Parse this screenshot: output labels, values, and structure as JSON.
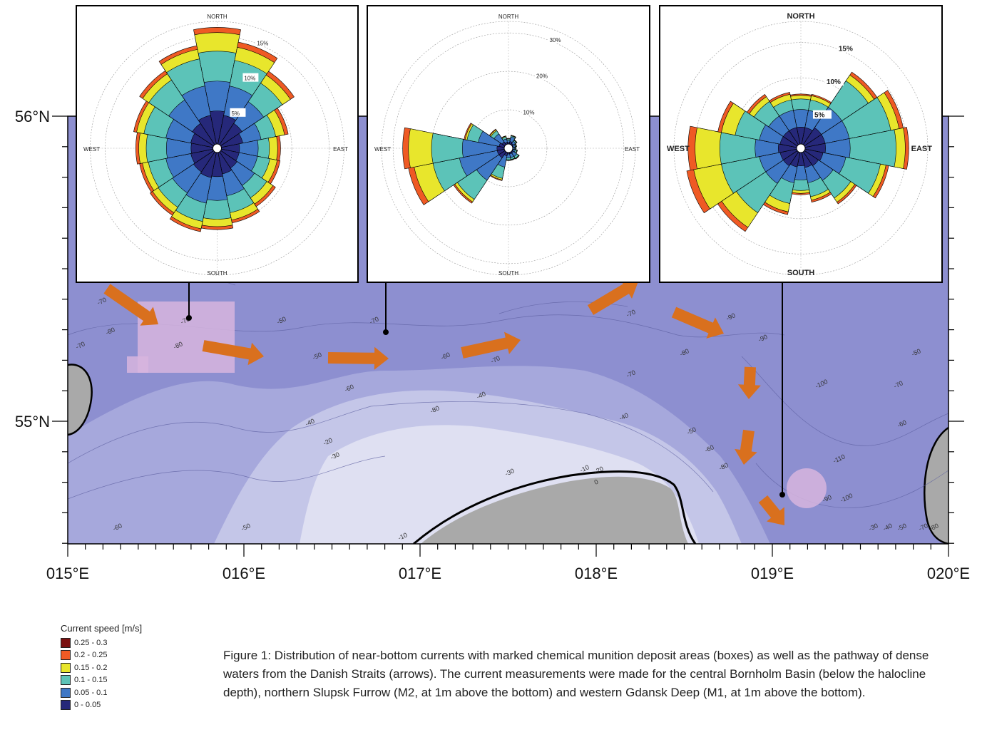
{
  "map": {
    "lat_labels": [
      "56°N",
      "55°N"
    ],
    "lon_labels": [
      "015°E",
      "016°E",
      "017°E",
      "018°E",
      "019°E",
      "020°E"
    ],
    "colors": {
      "deep": "#8d8fd0",
      "mid": "#a6a8dc",
      "shallow": "#c4c6e8",
      "shelf": "#dfe0f2",
      "land": "#a9a9a9",
      "arrow": "#d9701e",
      "deposit": "#d7b5de"
    },
    "contour_labels": [
      "-70",
      "-80",
      "-70",
      "-80",
      "-60",
      "-50",
      "-50",
      "-60",
      "-70",
      "-60",
      "-40",
      "-70",
      "-80",
      "-40",
      "-30",
      "-20",
      "-30",
      "-20",
      "-10",
      "0",
      "-10",
      "-70",
      "-60",
      "-40",
      "-50",
      "-60",
      "-70",
      "-80",
      "-90",
      "-100",
      "-110",
      "-80",
      "-90",
      "-100",
      "-70",
      "-60",
      "-50",
      "-30",
      "-40",
      "-50",
      "-70",
      "-80",
      "-90",
      "-90",
      "-70",
      "-60",
      "-50"
    ]
  },
  "roses": [
    {
      "name": "Bornholm Basin",
      "directions": {
        "north": "NORTH",
        "south": "SOUTH",
        "east": "EAST",
        "west": "WEST"
      },
      "rings": [
        "5%",
        "10%",
        "15%"
      ],
      "max_pct": 17,
      "sectors": [
        [
          [
            5,
            9,
            13,
            15.5,
            16.2
          ]
        ],
        [
          [
            4.5,
            8.5,
            12,
            13.8,
            14.5
          ]
        ],
        [
          [
            4,
            7.5,
            10.5,
            11.8,
            12.4
          ]
        ],
        [
          [
            3.5,
            6,
            8,
            9.2,
            9.7
          ]
        ],
        [
          [
            3,
            5.5,
            7,
            8.1,
            8.5
          ]
        ],
        [
          [
            3,
            5.5,
            7.2,
            8.2,
            8.6
          ]
        ],
        [
          [
            3.2,
            6,
            8,
            9,
            9.4
          ]
        ],
        [
          [
            3.5,
            6.5,
            8.8,
            9.8,
            10.2
          ]
        ],
        [
          [
            3.8,
            7,
            9.5,
            10.5,
            10.9
          ]
        ],
        [
          [
            4,
            7.5,
            10,
            11,
            11.4
          ]
        ],
        [
          [
            3.8,
            7.2,
            9.5,
            10.4,
            10.8
          ]
        ],
        [
          [
            3.6,
            7,
            9.4,
            10.2,
            10.6
          ]
        ],
        [
          [
            3.5,
            6.8,
            9.5,
            10.5,
            10.9
          ]
        ],
        [
          [
            3.6,
            7,
            10,
            11,
            11.4
          ]
        ],
        [
          [
            4,
            7.8,
            11,
            12,
            12.5
          ]
        ],
        [
          [
            4.5,
            8.5,
            12.2,
            13.5,
            14
          ]
        ]
      ]
    },
    {
      "name": "Slupsk Furrow (M2)",
      "directions": {
        "north": "NORTH",
        "south": "SOUTH",
        "east": "EAST",
        "west": "WEST"
      },
      "rings": [
        "10%",
        "20%",
        "30%"
      ],
      "max_pct": 33,
      "sectors": [
        [
          [
            1.5,
            2,
            2.4,
            2.5,
            2.6
          ]
        ],
        [
          [
            1.8,
            3,
            3.3,
            3.4,
            3.5
          ]
        ],
        [
          [
            1.5,
            2.2,
            2.5,
            2.6,
            2.7
          ]
        ],
        [
          [
            1.3,
            1.8,
            2,
            2.1,
            2.2
          ]
        ],
        [
          [
            1.2,
            1.6,
            1.8,
            1.9,
            2
          ]
        ],
        [
          [
            1.3,
            1.8,
            2.2,
            2.3,
            2.4
          ]
        ],
        [
          [
            1.5,
            2.6,
            3.2,
            3.3,
            3.4
          ]
        ],
        [
          [
            1.5,
            2.5,
            3,
            3.1,
            3.2
          ]
        ],
        [
          [
            1.5,
            2.5,
            3,
            3.1,
            3.2
          ]
        ],
        [
          [
            2,
            5,
            8,
            8.4,
            8.6
          ]
        ],
        [
          [
            3,
            10,
            16,
            16.8,
            17.2
          ]
        ],
        [
          [
            3,
            13,
            20,
            25,
            26.5
          ]
        ],
        [
          [
            3,
            12,
            20,
            26,
            27.5
          ]
        ],
        [
          [
            2.5,
            8,
            11,
            11.5,
            11.8
          ]
        ],
        [
          [
            2,
            4.5,
            5.5,
            5.8,
            6
          ]
        ],
        [
          [
            1.6,
            2.5,
            3,
            3.2,
            3.3
          ]
        ]
      ]
    },
    {
      "name": "Gdansk Deep (M1)",
      "directions": {
        "north": "NORTH",
        "south": "SOUTH",
        "east": "EAST",
        "west": "WEST"
      },
      "rings": [
        "5%",
        "10%",
        "15%"
      ],
      "max_pct": 18,
      "sectors": [
        [
          [
            3,
            5.5,
            7,
            7.5,
            7.7
          ]
        ],
        [
          [
            3,
            5.5,
            7,
            7.6,
            7.8
          ]
        ],
        [
          [
            3.5,
            7,
            11.5,
            12.5,
            13
          ]
        ],
        [
          [
            3.5,
            7,
            13,
            14.2,
            14.8
          ]
        ],
        [
          [
            3.5,
            7,
            13.5,
            14.8,
            15.3
          ]
        ],
        [
          [
            3.2,
            6.5,
            11.5,
            12.3,
            12.7
          ]
        ],
        [
          [
            3,
            5.5,
            8.5,
            9.2,
            9.5
          ]
        ],
        [
          [
            2.8,
            5,
            7,
            7.5,
            7.8
          ]
        ],
        [
          [
            2.5,
            4.5,
            6,
            6.4,
            6.6
          ]
        ],
        [
          [
            2.7,
            5,
            8,
            9.2,
            9.6
          ]
        ],
        [
          [
            3,
            6,
            11,
            13.5,
            14.2
          ]
        ],
        [
          [
            3,
            6,
            11.5,
            15.5,
            16.5
          ]
        ],
        [
          [
            3.2,
            6.5,
            11.5,
            15,
            16
          ]
        ],
        [
          [
            3,
            6,
            9.5,
            11.5,
            12
          ]
        ],
        [
          [
            3,
            5.5,
            8,
            8.8,
            9.2
          ]
        ],
        [
          [
            3,
            5.5,
            7,
            7.8,
            8.1
          ]
        ]
      ]
    }
  ],
  "legend": {
    "title": "Current speed [m/s]",
    "items": [
      {
        "label": "0.25 - 0.3",
        "color": "#7a1010"
      },
      {
        "label": "0.2 - 0.25",
        "color": "#ef5a24"
      },
      {
        "label": "0.15 - 0.2",
        "color": "#e8e62c"
      },
      {
        "label": "0.1 - 0.15",
        "color": "#5cc3b8"
      },
      {
        "label": "0.05 - 0.1",
        "color": "#3f78c6"
      },
      {
        "label": "0 - 0.05",
        "color": "#26287a"
      }
    ]
  },
  "caption": "Figure 1: Distribution of near-bottom currents with marked chemical munition deposit areas (boxes) as well as the pathway of dense waters from the Danish Straits (arrows). The current measurements were made for the central Bornholm Basin (below the halocline depth), northern Slupsk Furrow (M2, at 1m above the bottom) and western Gdansk Deep (M1, at 1m above the bottom)."
}
